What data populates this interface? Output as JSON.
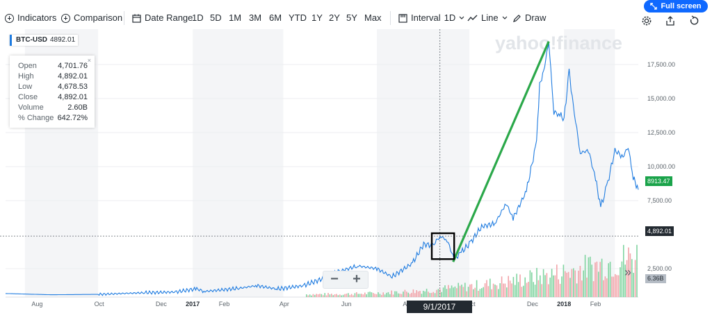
{
  "toolbar": {
    "indicators": "Indicators",
    "comparison": "Comparison",
    "date_range": "Date Range",
    "ranges": [
      "1D",
      "5D",
      "1M",
      "3M",
      "6M",
      "YTD",
      "1Y",
      "2Y",
      "5Y",
      "Max"
    ],
    "interval": "Interval",
    "interval_value": "1D",
    "chart_type": "Line",
    "draw": "Draw",
    "full_screen": "Full screen"
  },
  "watermark": "yahoo!finance",
  "ticker": {
    "symbol": "BTC-USD",
    "price": "4892.01"
  },
  "ohlc": {
    "close_icon": "×",
    "rows": [
      {
        "label": "Open",
        "value": "4,701.76"
      },
      {
        "label": "High",
        "value": "4,892.01"
      },
      {
        "label": "Low",
        "value": "4,678.53"
      },
      {
        "label": "Close",
        "value": "4,892.01"
      },
      {
        "label": "Volume",
        "value": "2.60B"
      },
      {
        "label": "% Change",
        "value": "642.72%"
      }
    ]
  },
  "crosshair": {
    "date": "9/1/2017",
    "price": "4,892.01"
  },
  "last_price": "8913.47",
  "volume_label": "6.36B",
  "zoom": {
    "minus": "−",
    "plus": "+"
  },
  "chevron": "»",
  "colors": {
    "line": "#1e7be0",
    "trend": "#2ba84a",
    "last": "#1aa34a",
    "vol_up": "#7fd4a0",
    "vol_down": "#f2a3a8"
  },
  "chart_data": {
    "type": "line",
    "title": "",
    "xlabel": "",
    "ylabel": "",
    "x_ticks": [
      "Aug",
      "Oct",
      "Dec",
      "2017",
      "Feb",
      "Apr",
      "Jun",
      "Aug",
      "Oct",
      "Dec",
      "2018",
      "Feb"
    ],
    "y_ticks": [
      "2,500.00",
      "7,500.00",
      "10,000.00",
      "12,500.00",
      "15,000.00",
      "17,500.00"
    ],
    "ylim": [
      0,
      19500
    ],
    "grid": true,
    "series": [
      {
        "x": [
          "2016-07-01",
          "2016-08-15",
          "2016-10-01",
          "2016-11-15",
          "2016-12-15",
          "2017-01-05",
          "2017-01-12",
          "2017-02-15",
          "2017-03-05",
          "2017-03-25",
          "2017-04-20",
          "2017-05-10",
          "2017-05-25",
          "2017-06-12",
          "2017-07-01",
          "2017-07-16",
          "2017-08-05",
          "2017-08-16",
          "2017-08-25",
          "2017-09-01",
          "2017-09-08",
          "2017-09-15",
          "2017-09-22",
          "2017-10-01",
          "2017-10-12",
          "2017-10-25",
          "2017-11-05",
          "2017-11-12",
          "2017-11-25",
          "2017-12-05",
          "2017-12-08",
          "2017-12-12",
          "2017-12-17",
          "2017-12-22",
          "2017-12-28",
          "2018-01-01",
          "2018-01-06",
          "2018-01-10",
          "2018-01-17",
          "2018-01-25",
          "2018-02-01",
          "2018-02-06",
          "2018-02-12",
          "2018-02-20",
          "2018-02-28",
          "2018-03-05",
          "2018-03-10",
          "2018-03-15"
        ],
        "y": [
          670,
          580,
          610,
          730,
          780,
          1020,
          820,
          1050,
          1250,
          1000,
          1250,
          1800,
          2300,
          2700,
          2500,
          1900,
          2900,
          4300,
          4200,
          4892,
          4600,
          3200,
          3700,
          4400,
          5600,
          5800,
          7300,
          6200,
          8200,
          11800,
          16000,
          17000,
          19200,
          14000,
          13800,
          13500,
          17000,
          14500,
          11000,
          11200,
          9100,
          7000,
          8500,
          11200,
          10700,
          11500,
          9200,
          8300
        ]
      }
    ],
    "trend_line": {
      "from": {
        "x": "2017-09-14",
        "y": 3000
      },
      "to": {
        "x": "2017-12-17",
        "y": 19200
      }
    },
    "highlight_box": {
      "from_x": "2017-08-24",
      "to_x": "2017-09-15",
      "y_low": 3200,
      "y_high": 5100
    },
    "volume_bars": true
  }
}
